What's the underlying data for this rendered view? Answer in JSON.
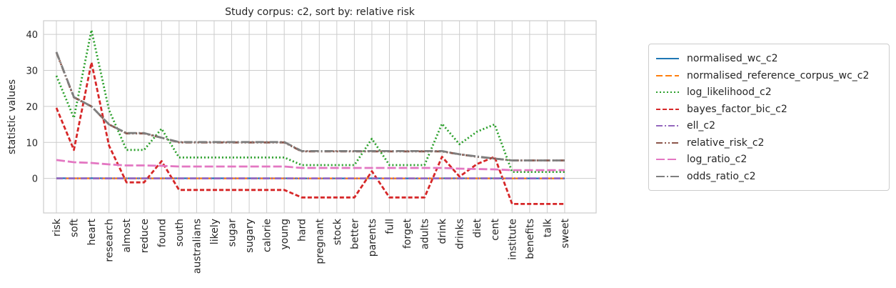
{
  "chart_data": {
    "type": "line",
    "title": "Study corpus: c2, sort by: relative risk",
    "xlabel": "",
    "ylabel": "statistic values",
    "ylim": [
      -9.6,
      43.8
    ],
    "yticks": [
      0,
      10,
      20,
      30,
      40
    ],
    "grid": true,
    "legend_position": "right",
    "categories": [
      "risk",
      "soft",
      "heart",
      "research",
      "almost",
      "reduce",
      "found",
      "south",
      "australians",
      "likely",
      "sugar",
      "sugary",
      "calorie",
      "young",
      "hard",
      "pregnant",
      "stock",
      "better",
      "parents",
      "full",
      "forget",
      "adults",
      "drink",
      "drinks",
      "diet",
      "cent",
      "institute",
      "benefits",
      "talk",
      "sweet"
    ],
    "series": [
      {
        "name": "normalised_wc_c2",
        "color": "#1f77b4",
        "dash": "",
        "width": 2.2,
        "values": [
          0.05,
          0.03,
          0.07,
          0.03,
          0.02,
          0.02,
          0.03,
          0.02,
          0.02,
          0.02,
          0.02,
          0.02,
          0.02,
          0.02,
          0.01,
          0.01,
          0.01,
          0.01,
          0.02,
          0.01,
          0.01,
          0.01,
          0.02,
          0.02,
          0.02,
          0.02,
          0.01,
          0.01,
          0.01,
          0.01
        ]
      },
      {
        "name": "normalised_reference_corpus_wc_c2",
        "color": "#ff7f0e",
        "dash": "9,4",
        "width": 2.2,
        "values": [
          0,
          0,
          0,
          0,
          0,
          0,
          0,
          0,
          0,
          0,
          0,
          0,
          0,
          0,
          0,
          0,
          0,
          0,
          0,
          0,
          0,
          0,
          0,
          0,
          0,
          0,
          0,
          0,
          0,
          0
        ]
      },
      {
        "name": "log_likelihood_c2",
        "color": "#2ca02c",
        "dash": "2,3",
        "width": 2.8,
        "values": [
          28.5,
          16.8,
          41.2,
          19.0,
          7.9,
          7.9,
          13.8,
          5.8,
          5.8,
          5.8,
          5.8,
          5.8,
          5.8,
          5.8,
          3.7,
          3.7,
          3.7,
          3.7,
          11.0,
          3.7,
          3.7,
          3.7,
          15.2,
          9.5,
          13.0,
          15.0,
          1.8,
          1.8,
          1.8,
          1.8
        ]
      },
      {
        "name": "bayes_factor_bic_c2",
        "color": "#d62728",
        "dash": "6,3",
        "width": 2.8,
        "values": [
          19.6,
          7.9,
          32.2,
          9.1,
          -1.1,
          -1.1,
          4.8,
          -3.2,
          -3.2,
          -3.2,
          -3.2,
          -3.2,
          -3.2,
          -3.2,
          -5.3,
          -5.3,
          -5.3,
          -5.3,
          2.0,
          -5.3,
          -5.3,
          -5.3,
          6.0,
          0.5,
          4.0,
          6.0,
          -7.1,
          -7.1,
          -7.1,
          -7.1
        ]
      },
      {
        "name": "ell_c2",
        "color": "#9467bd",
        "dash": "9,3,2,3",
        "width": 2.8,
        "values": [
          0.01,
          0.01,
          0.01,
          0.01,
          0.01,
          0.01,
          0.01,
          0.01,
          0.01,
          0.01,
          0.01,
          0.01,
          0.01,
          0.01,
          0.01,
          0.01,
          0.01,
          0.01,
          0.01,
          0.01,
          0.01,
          0.01,
          0.01,
          0.01,
          0.01,
          0.01,
          0.01,
          0.01,
          0.01,
          0.01
        ]
      },
      {
        "name": "relative_risk_c2",
        "color": "#8c564b",
        "dash": "9,3,2,3,2,3",
        "width": 2.8,
        "values": [
          35.0,
          22.5,
          20.0,
          15.0,
          12.5,
          12.5,
          11.3,
          10.0,
          10.0,
          10.0,
          10.0,
          10.0,
          10.0,
          10.0,
          7.5,
          7.5,
          7.5,
          7.5,
          7.5,
          7.5,
          7.5,
          7.5,
          7.5,
          6.7,
          6.0,
          5.5,
          5.0,
          5.0,
          5.0,
          5.0
        ]
      },
      {
        "name": "log_ratio_c2",
        "color": "#e377c2",
        "dash": "12,4",
        "width": 2.8,
        "values": [
          5.1,
          4.5,
          4.3,
          3.9,
          3.6,
          3.6,
          3.5,
          3.3,
          3.3,
          3.3,
          3.3,
          3.3,
          3.3,
          3.3,
          2.9,
          2.9,
          2.9,
          2.9,
          2.9,
          2.9,
          2.9,
          2.9,
          2.9,
          2.7,
          2.6,
          2.5,
          2.3,
          2.3,
          2.3,
          2.3
        ]
      },
      {
        "name": "odds_ratio_c2",
        "color": "#7f7f7f",
        "dash": "12,3,2,3",
        "width": 2.8,
        "values": [
          35.1,
          22.6,
          20.0,
          15.0,
          12.6,
          12.6,
          11.3,
          10.1,
          10.1,
          10.1,
          10.1,
          10.1,
          10.1,
          10.1,
          7.6,
          7.6,
          7.6,
          7.6,
          7.6,
          7.6,
          7.6,
          7.6,
          7.6,
          6.7,
          6.1,
          5.5,
          5.0,
          5.0,
          5.0,
          5.0
        ]
      }
    ]
  }
}
